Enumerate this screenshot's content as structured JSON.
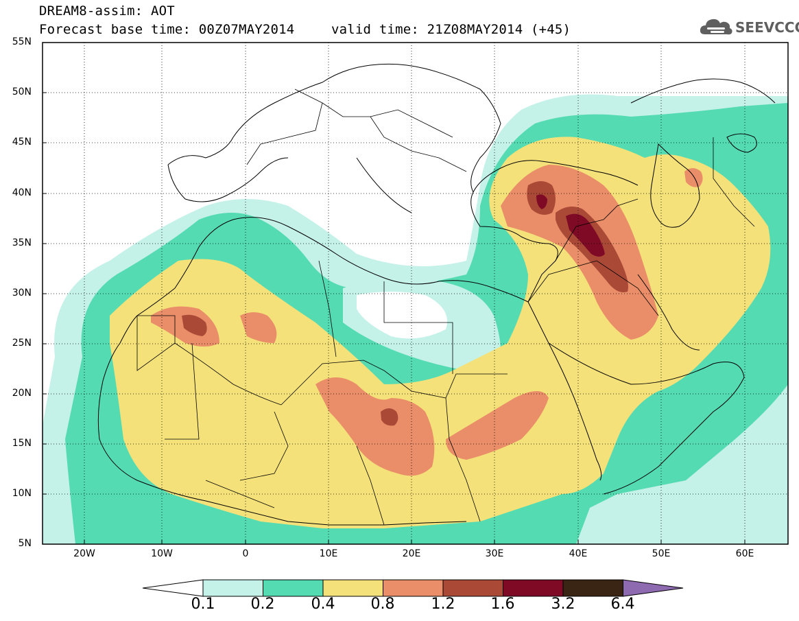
{
  "title": {
    "line1": "DREAM8-assim: AOT",
    "base_time": "Forecast base time: 00Z07MAY2014",
    "valid_time": "valid time: 21Z08MAY2014 (+45)"
  },
  "logo": {
    "text": "SEEVCCC",
    "icon": "cloud-icon"
  },
  "map": {
    "projection": "cylindrical lat/lon",
    "lon_range": [
      -25,
      65
    ],
    "lat_range": [
      5,
      55
    ],
    "lat_labels": [
      "55N",
      "50N",
      "45N",
      "40N",
      "35N",
      "30N",
      "25N",
      "20N",
      "15N",
      "10N",
      "5N"
    ],
    "lon_labels": [
      "20W",
      "10W",
      "0",
      "10E",
      "20E",
      "30E",
      "40E",
      "50E",
      "60E"
    ]
  },
  "colorbar": {
    "labels": [
      "0.1",
      "0.2",
      "0.4",
      "0.8",
      "1.2",
      "1.6",
      "3.2",
      "6.4"
    ],
    "colors": [
      "#ffffff",
      "#c4f1e8",
      "#55dbb2",
      "#f4e17a",
      "#e98e68",
      "#ab4937",
      "#7e0a25",
      "#3a2515",
      "#8e6ab0"
    ]
  }
}
